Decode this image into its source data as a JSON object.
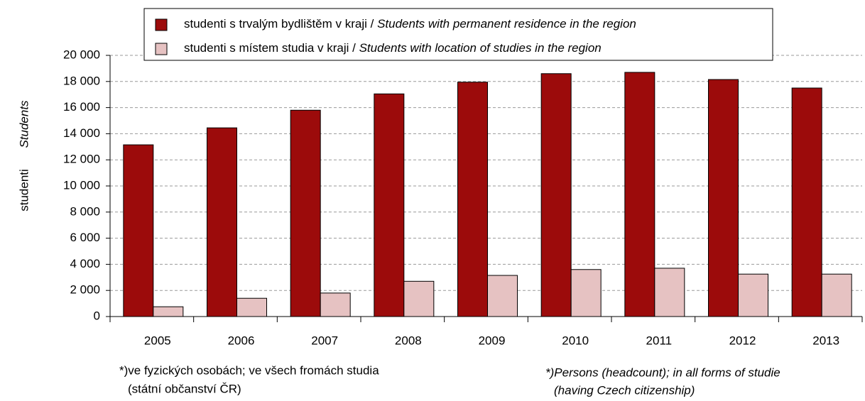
{
  "chart_data": {
    "type": "bar",
    "categories": [
      "2005",
      "2006",
      "2007",
      "2008",
      "2009",
      "2010",
      "2011",
      "2012",
      "2013"
    ],
    "series": [
      {
        "name": "studenti s trvalým bydlištěm v kraji / Students with permanent residence in the region",
        "color": "#9c0b0b",
        "values": [
          13150,
          14450,
          15800,
          17050,
          17950,
          18600,
          18700,
          18150,
          17500
        ]
      },
      {
        "name": "studenti s místem studia v kraji / Students with location of studies in the region",
        "color": "#e6c2c2",
        "values": [
          750,
          1400,
          1800,
          2700,
          3150,
          3600,
          3700,
          3250,
          3250
        ]
      }
    ],
    "ylim": [
      0,
      20000
    ],
    "yticks": [
      0,
      {
        "value": 2000,
        "label": "2 000"
      },
      {
        "value": 4000,
        "label": "4 000"
      },
      {
        "value": 6000,
        "label": "6 000"
      },
      {
        "value": 8000,
        "label": "8 000"
      },
      {
        "value": 10000,
        "label": "10 000"
      },
      {
        "value": 12000,
        "label": "12 000"
      },
      {
        "value": 14000,
        "label": "14 000"
      },
      {
        "value": 16000,
        "label": "16 000"
      },
      {
        "value": 18000,
        "label": "18 000"
      },
      {
        "value": 20000,
        "label": "20 000"
      }
    ],
    "grid": true,
    "y_label": "studenti",
    "y_label_en": "Students",
    "notes": [
      "*)ve fyzických osobách; ve všech fromách studia",
      "(státní občanství ČR)"
    ],
    "notes_en": [
      "*)Persons (headcount); in all forms of studie",
      "(having Czech citizenship)"
    ]
  }
}
